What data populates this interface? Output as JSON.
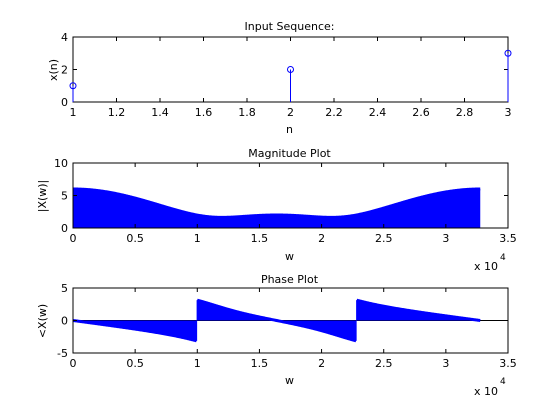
{
  "colors": {
    "series": "#0000ff",
    "axis": "#000000",
    "background": "#ffffff"
  },
  "chart_data": [
    {
      "type": "stem",
      "title": "Input Sequence:",
      "xlabel": "n",
      "ylabel": "x(n)",
      "xlim": [
        1,
        3
      ],
      "ylim": [
        0,
        4
      ],
      "xticks": [
        "1",
        "1.2",
        "1.4",
        "1.6",
        "1.8",
        "2",
        "2.2",
        "2.4",
        "2.6",
        "2.8",
        "3"
      ],
      "yticks": [
        "0",
        "2",
        "4"
      ],
      "x": [
        1,
        2,
        3
      ],
      "values": [
        1,
        2,
        3
      ]
    },
    {
      "type": "area",
      "title": "Magnitude Plot",
      "xlabel": "w",
      "ylabel": "|X(w)|",
      "xlim": [
        0,
        35000
      ],
      "ylim": [
        0,
        10
      ],
      "xticks": [
        "0",
        "0.5",
        "1",
        "1.5",
        "2",
        "2.5",
        "3",
        "3.5"
      ],
      "yticks": [
        "0",
        "5",
        "10"
      ],
      "x_multiplier": "x 10",
      "x_exponent": "4",
      "w_max": 32767,
      "curve": "abs(1 + 2e^{-jw} + 3e^{-j2w}), w in rad",
      "sample_points": [
        {
          "w": 0,
          "y": 6.0
        },
        {
          "w": 3276,
          "y": 5.4
        },
        {
          "w": 6553,
          "y": 3.9
        },
        {
          "w": 9830,
          "y": 2.5
        },
        {
          "w": 13107,
          "y": 2.1
        },
        {
          "w": 16383,
          "y": 2.4
        },
        {
          "w": 19660,
          "y": 2.1
        },
        {
          "w": 22937,
          "y": 2.5
        },
        {
          "w": 26214,
          "y": 3.9
        },
        {
          "w": 29490,
          "y": 5.4
        },
        {
          "w": 32767,
          "y": 6.0
        }
      ]
    },
    {
      "type": "area",
      "title": "Phase Plot",
      "xlabel": "w",
      "ylabel": "<X(w)",
      "xlim": [
        0,
        35000
      ],
      "ylim": [
        -5,
        5
      ],
      "xticks": [
        "0",
        "0.5",
        "1",
        "1.5",
        "2",
        "2.5",
        "3",
        "3.5"
      ],
      "yticks": [
        "-5",
        "0",
        "5"
      ],
      "x_multiplier": "x 10",
      "x_exponent": "4",
      "w_max": 32767,
      "curve": "angle(1 + 2e^{-jw} + 3e^{-j2w}), w in rad",
      "sample_points": [
        {
          "w": 0,
          "y": 0.0
        },
        {
          "w": 9900,
          "y": -3.0
        },
        {
          "w": 10000,
          "y": 3.0
        },
        {
          "w": 17500,
          "y": 0.0
        },
        {
          "w": 22600,
          "y": -3.0
        },
        {
          "w": 22800,
          "y": 3.0
        },
        {
          "w": 32767,
          "y": 0.0
        }
      ]
    }
  ]
}
